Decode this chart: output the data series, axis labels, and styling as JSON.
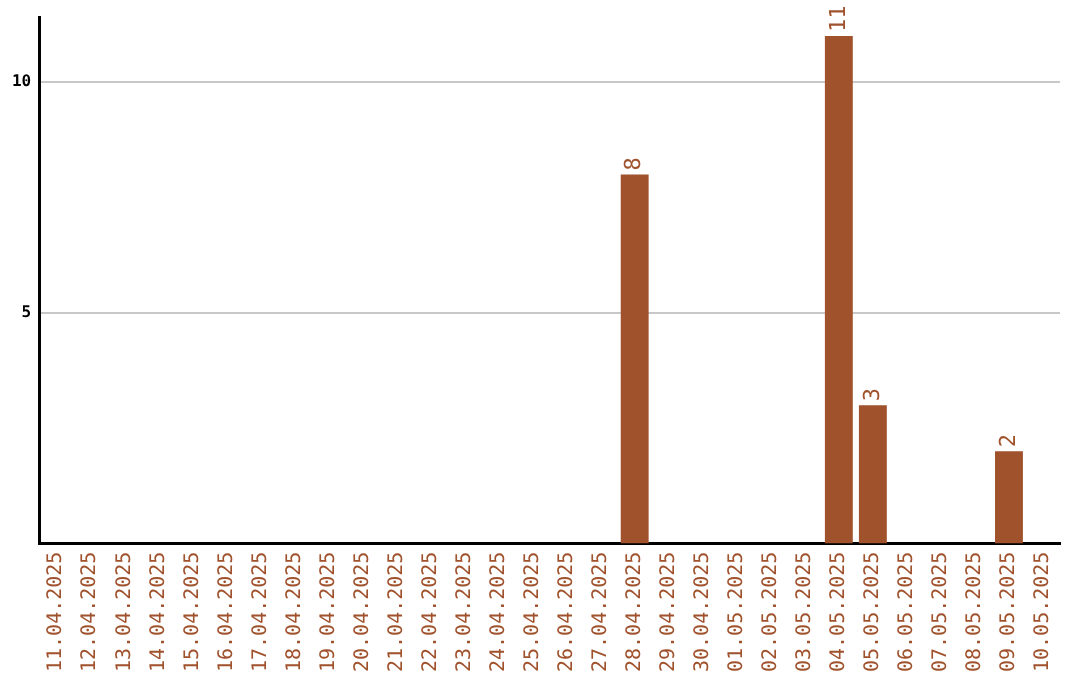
{
  "chart_data": {
    "type": "bar",
    "categories": [
      "11.04.2025",
      "12.04.2025",
      "13.04.2025",
      "14.04.2025",
      "15.04.2025",
      "16.04.2025",
      "17.04.2025",
      "18.04.2025",
      "19.04.2025",
      "20.04.2025",
      "21.04.2025",
      "22.04.2025",
      "23.04.2025",
      "24.04.2025",
      "25.04.2025",
      "26.04.2025",
      "27.04.2025",
      "28.04.2025",
      "29.04.2025",
      "30.04.2025",
      "01.05.2025",
      "02.05.2025",
      "03.05.2025",
      "04.05.2025",
      "05.05.2025",
      "06.05.2025",
      "07.05.2025",
      "08.05.2025",
      "09.05.2025",
      "10.05.2025"
    ],
    "values": [
      0,
      0,
      0,
      0,
      0,
      0,
      0,
      0,
      0,
      0,
      0,
      0,
      0,
      0,
      0,
      0,
      0,
      8,
      0,
      0,
      0,
      0,
      0,
      11,
      3,
      0,
      0,
      0,
      2,
      0
    ],
    "value_labels": [
      null,
      null,
      null,
      null,
      null,
      null,
      null,
      null,
      null,
      null,
      null,
      null,
      null,
      null,
      null,
      null,
      null,
      "8",
      null,
      null,
      null,
      null,
      null,
      "11",
      "3",
      null,
      null,
      null,
      "2",
      null
    ],
    "color": "#a0522d",
    "ylim": [
      0,
      11.4
    ],
    "yticks": [
      5,
      10
    ],
    "grid": "y",
    "legend": false
  }
}
